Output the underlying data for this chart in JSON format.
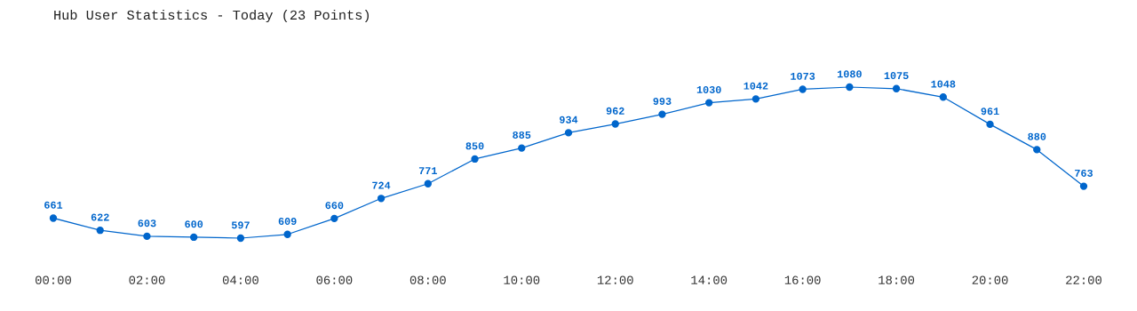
{
  "chart_data": {
    "type": "line",
    "title": "Hub User Statistics - Today (23 Points)",
    "x": [
      0,
      1,
      2,
      3,
      4,
      5,
      6,
      7,
      8,
      9,
      10,
      11,
      12,
      13,
      14,
      15,
      16,
      17,
      18,
      19,
      20,
      21,
      22
    ],
    "xlim": [
      0,
      22
    ],
    "xticks": [
      {
        "value": 0,
        "label": "00:00"
      },
      {
        "value": 2,
        "label": "02:00"
      },
      {
        "value": 4,
        "label": "04:00"
      },
      {
        "value": 6,
        "label": "06:00"
      },
      {
        "value": 8,
        "label": "08:00"
      },
      {
        "value": 10,
        "label": "10:00"
      },
      {
        "value": 12,
        "label": "12:00"
      },
      {
        "value": 14,
        "label": "14:00"
      },
      {
        "value": 16,
        "label": "16:00"
      },
      {
        "value": 18,
        "label": "18:00"
      },
      {
        "value": 20,
        "label": "20:00"
      },
      {
        "value": 22,
        "label": "22:00"
      }
    ],
    "series": [
      {
        "color": "#0066cc",
        "values": [
          661,
          622,
          603,
          600,
          597,
          609,
          660,
          724,
          771,
          850,
          885,
          934,
          962,
          993,
          1030,
          1042,
          1073,
          1080,
          1075,
          1048,
          961,
          880,
          763
        ]
      }
    ],
    "data_labels": true,
    "marker": "circle",
    "line_style": "solid",
    "grid": false,
    "legend": false,
    "tick_labels": "x"
  }
}
